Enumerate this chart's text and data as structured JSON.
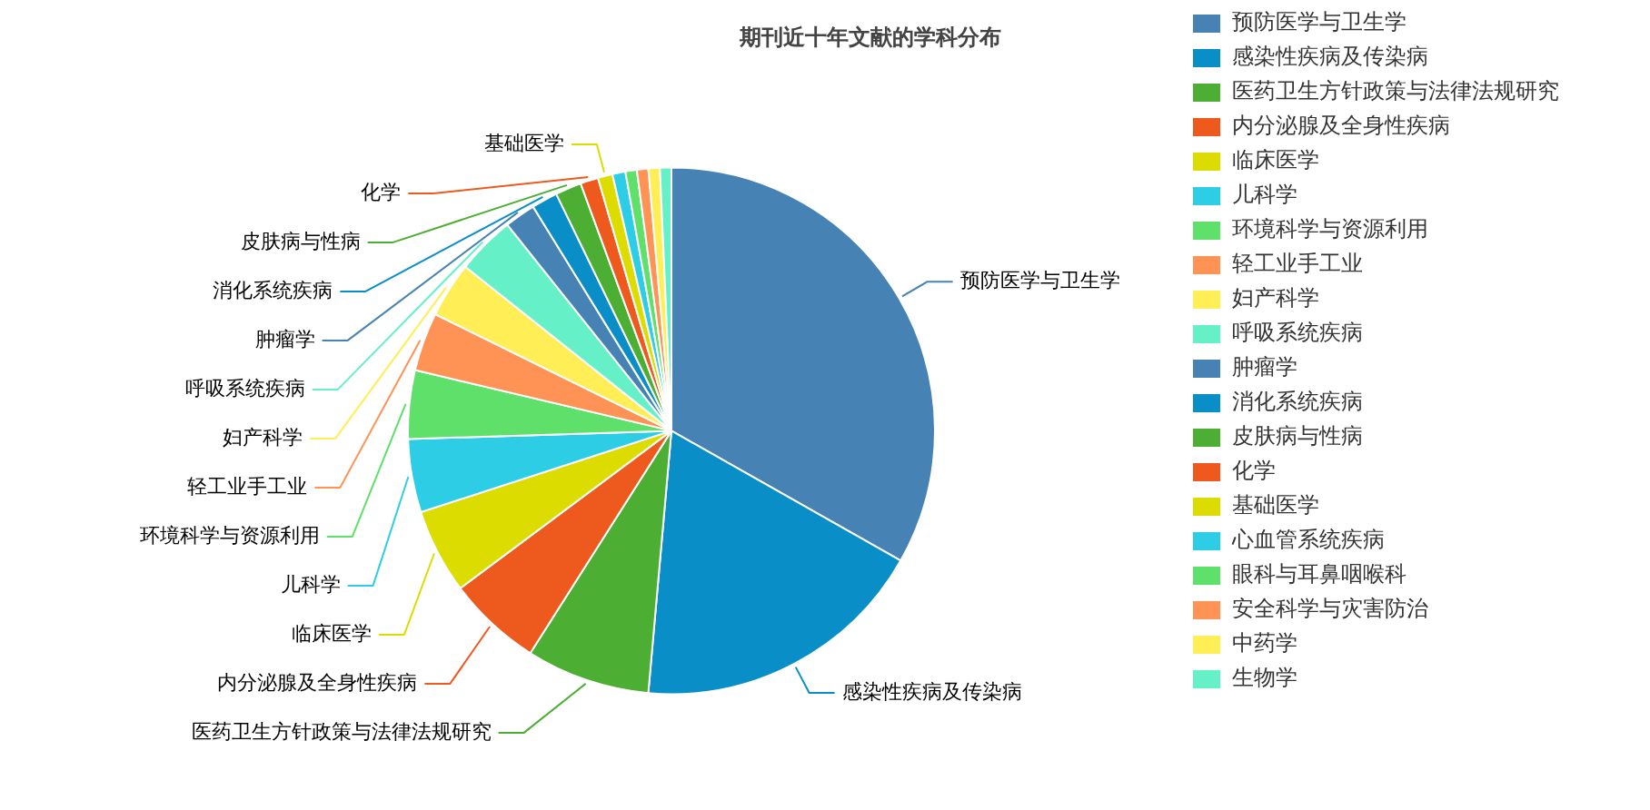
{
  "chart_data": {
    "type": "pie",
    "title": "期刊近十年文献的学科分布",
    "categories": [
      "预防医学与卫生学",
      "感染性疾病及传染病",
      "医药卫生方针政策与法律法规研究",
      "内分泌腺及全身性疾病",
      "临床医学",
      "儿科学",
      "环境科学与资源利用",
      "轻工业手工业",
      "妇产科学",
      "呼吸系统疾病",
      "肿瘤学",
      "消化系统疾病",
      "皮肤病与性病",
      "化学",
      "基础医学",
      "心血管系统疾病",
      "眼科与耳鼻咽喉科",
      "安全科学与灾害防治",
      "中药学",
      "生物学"
    ],
    "values": [
      33.2,
      18.2,
      7.6,
      5.8,
      5.2,
      4.5,
      4.2,
      3.6,
      3.4,
      3.6,
      1.9,
      1.6,
      1.6,
      1.1,
      0.9,
      0.8,
      0.7,
      0.7,
      0.7,
      0.7
    ],
    "colors": [
      "#4682b4",
      "#0a8ec8",
      "#4cae32",
      "#ee5a1e",
      "#dcdc00",
      "#2ecde6",
      "#5ee06a",
      "#ff9255",
      "#ffee55",
      "#66f0c8",
      "#4682b4",
      "#0a8ec8",
      "#4cae32",
      "#ee5a1e",
      "#dcdc00",
      "#2ecde6",
      "#5ee06a",
      "#ff9255",
      "#ffee55",
      "#66f0c8"
    ],
    "value_labels": [
      "预防医学与卫生学",
      "感染性疾病及传染病",
      "医药卫生方针政策与法律法规研究",
      "内分泌腺及全身性疾病",
      "临床医学",
      "儿科学",
      "环境科学与资源利用",
      "轻工业手工业",
      "妇产科学",
      "呼吸系统疾病",
      "肿瘤学",
      "消化系统疾病",
      "皮肤病与性病",
      "化学",
      "基础医学",
      null,
      null,
      null,
      null,
      null
    ],
    "legend": "right"
  }
}
